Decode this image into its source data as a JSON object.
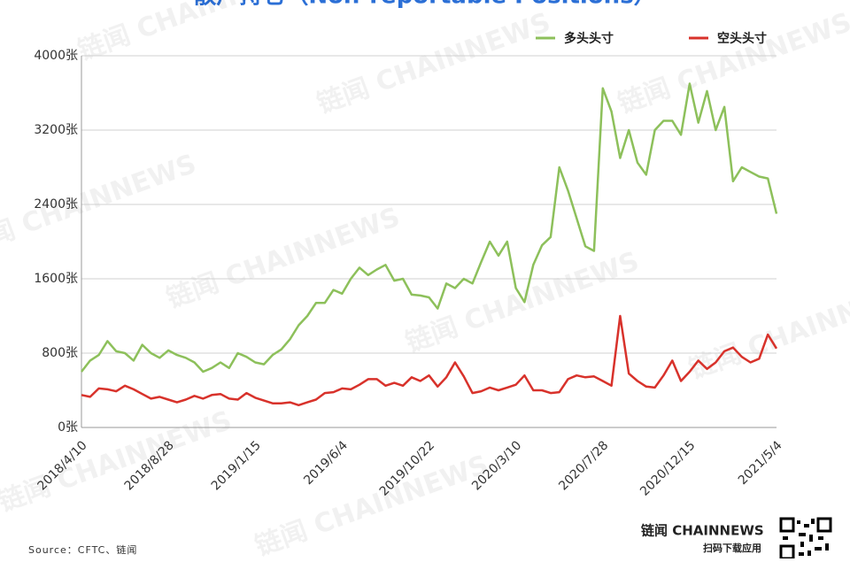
{
  "chart_data": {
    "type": "line",
    "title": "散户持仓（Non-reportable Positions）",
    "watermark": "链闻 CHAINNEWS",
    "source": "Source：CFTC、链闻",
    "brand": "链闻 CHAINNEWS",
    "brand_subtitle": "扫码下载应用",
    "categories": [
      "2018/4/10",
      null,
      null,
      null,
      null,
      null,
      null,
      null,
      null,
      null,
      "2018/8/28",
      null,
      null,
      null,
      null,
      null,
      null,
      null,
      null,
      null,
      "2019/1/15",
      null,
      null,
      null,
      null,
      null,
      null,
      null,
      null,
      null,
      "2019/6/4",
      null,
      null,
      null,
      null,
      null,
      null,
      null,
      null,
      null,
      "2019/10/22",
      null,
      null,
      null,
      null,
      null,
      null,
      null,
      null,
      null,
      "2020/3/10",
      null,
      null,
      null,
      null,
      null,
      null,
      null,
      null,
      null,
      "2020/7/28",
      null,
      null,
      null,
      null,
      null,
      null,
      null,
      null,
      null,
      "2020/12/15",
      null,
      null,
      null,
      null,
      null,
      null,
      null,
      null,
      null,
      "2021/5/4"
    ],
    "series": [
      {
        "name": "多头头寸",
        "color": "#8dc05b",
        "values": [
          600,
          720,
          780,
          930,
          820,
          800,
          720,
          890,
          800,
          750,
          830,
          780,
          750,
          700,
          600,
          640,
          700,
          640,
          800,
          760,
          700,
          680,
          780,
          840,
          950,
          1100,
          1200,
          1340,
          1340,
          1480,
          1440,
          1600,
          1720,
          1640,
          1700,
          1750,
          1580,
          1600,
          1430,
          1420,
          1400,
          1280,
          1550,
          1500,
          1600,
          1550,
          1780,
          2000,
          1850,
          2000,
          1500,
          1350,
          1750,
          1960,
          2050,
          2800,
          2550,
          2250,
          1950,
          1900,
          3650,
          3400,
          2900,
          3200,
          2850,
          2720,
          3200,
          3300,
          3300,
          3150,
          3700,
          3280,
          3620,
          3200,
          3450,
          2650,
          2800,
          2750,
          2700,
          2680,
          2300
        ]
      },
      {
        "name": "空头头寸",
        "color": "#d8322b",
        "values": [
          350,
          330,
          420,
          410,
          390,
          450,
          410,
          360,
          310,
          330,
          300,
          270,
          300,
          340,
          310,
          350,
          360,
          310,
          300,
          370,
          320,
          290,
          260,
          260,
          270,
          240,
          270,
          300,
          370,
          380,
          420,
          410,
          460,
          520,
          520,
          450,
          480,
          450,
          540,
          500,
          560,
          440,
          540,
          700,
          550,
          370,
          390,
          430,
          400,
          430,
          460,
          560,
          400,
          400,
          370,
          380,
          520,
          560,
          540,
          550,
          500,
          450,
          1200,
          580,
          500,
          440,
          430,
          560,
          720,
          500,
          600,
          720,
          630,
          700,
          820,
          860,
          760,
          700,
          740,
          1000,
          850
        ]
      }
    ],
    "ylim": [
      0,
      4000
    ],
    "yticks": [
      {
        "value": 0,
        "label": "0张"
      },
      {
        "value": 800,
        "label": "800张"
      },
      {
        "value": 1600,
        "label": "1600张"
      },
      {
        "value": 2400,
        "label": "2400张"
      },
      {
        "value": 3200,
        "label": "3200张"
      },
      {
        "value": 4000,
        "label": "4000张"
      }
    ],
    "grid": true
  }
}
